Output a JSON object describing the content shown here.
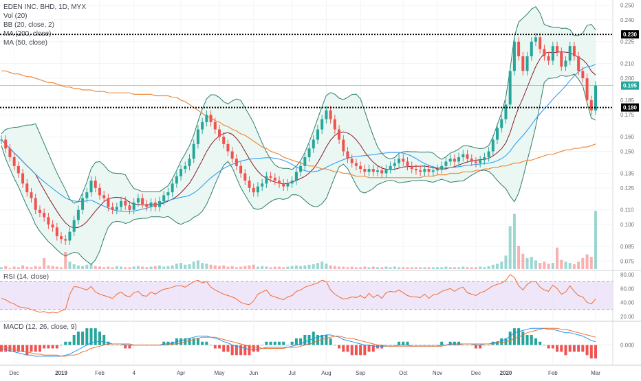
{
  "legend": {
    "title": "EDEN INC. BHD, 1D, MYX",
    "vol": "Vol (20)",
    "bb": "BB (20, close, 2)",
    "ma200": "MA (200, close)",
    "ma50": "MA (50, close)",
    "rsi": "RSI (14, close)",
    "macd": "MACD (12, 26, close, 9)"
  },
  "colors": {
    "up": "#26a69a",
    "down": "#ef5350",
    "bb": "#2e7d6c",
    "bb_fill": "#e9f6f2",
    "basis": "#8b1a2a",
    "ma50": "#2196f3",
    "ma200": "#ef8a3b",
    "rsi": "#ef6c2e",
    "rsi_band": "#e8dcf7",
    "macd": "#2196f3",
    "signal": "#ef6c2e",
    "tag_bg": "#000000",
    "tag_price": "#26a69a"
  },
  "chart_data": [
    {
      "type": "candlestick",
      "title": "EDEN INC. BHD, 1D, MYX",
      "x_ticks": [
        "Dec",
        "2019",
        "Feb",
        "4",
        "Apr",
        "May",
        "Jun",
        "Jul",
        "Aug",
        "Sep",
        "Oct",
        "Nov",
        "Dec",
        "2020",
        "Feb",
        "Mar"
      ],
      "y_ticks": [
        "0.250",
        "0.240",
        "0.225",
        "0.210",
        "0.200",
        "0.185",
        "0.175",
        "0.160",
        "0.150",
        "0.135",
        "0.125",
        "0.110",
        "0.100",
        "0.085",
        "0.075"
      ],
      "ylim": [
        0.0695,
        0.2535
      ],
      "horizontal_lines": [
        {
          "label": "0.230",
          "value": 0.23
        },
        {
          "label": "0.180",
          "value": 0.18
        }
      ],
      "last_price": {
        "label": "0.195",
        "value": 0.195
      },
      "series": [
        {
          "name": "price",
          "values": [
            0.158,
            0.152,
            0.146,
            0.14,
            0.135,
            0.128,
            0.122,
            0.118,
            0.11,
            0.108,
            0.105,
            0.1,
            0.098,
            0.092,
            0.09,
            0.089,
            0.095,
            0.103,
            0.11,
            0.118,
            0.122,
            0.13,
            0.125,
            0.12,
            0.118,
            0.112,
            0.11,
            0.112,
            0.116,
            0.113,
            0.11,
            0.115,
            0.118,
            0.114,
            0.112,
            0.115,
            0.112,
            0.116,
            0.12,
            0.122,
            0.128,
            0.133,
            0.138,
            0.14,
            0.145,
            0.155,
            0.165,
            0.17,
            0.175,
            0.17,
            0.165,
            0.16,
            0.155,
            0.15,
            0.145,
            0.14,
            0.135,
            0.13,
            0.125,
            0.122,
            0.126,
            0.128,
            0.133,
            0.132,
            0.13,
            0.128,
            0.126,
            0.128,
            0.13,
            0.136,
            0.14,
            0.146,
            0.152,
            0.158,
            0.165,
            0.172,
            0.178,
            0.172,
            0.165,
            0.158,
            0.15,
            0.145,
            0.142,
            0.14,
            0.138,
            0.136,
            0.138,
            0.136,
            0.137,
            0.135,
            0.138,
            0.14,
            0.142,
            0.145,
            0.143,
            0.14,
            0.138,
            0.137,
            0.136,
            0.138,
            0.136,
            0.137,
            0.138,
            0.14,
            0.143,
            0.145,
            0.143,
            0.146,
            0.148,
            0.145,
            0.143,
            0.142,
            0.144,
            0.146,
            0.15,
            0.158,
            0.166,
            0.172,
            0.182,
            0.205,
            0.225,
            0.215,
            0.205,
            0.215,
            0.225,
            0.228,
            0.22,
            0.215,
            0.212,
            0.222,
            0.218,
            0.208,
            0.212,
            0.222,
            0.215,
            0.205,
            0.2,
            0.185,
            0.178,
            0.195
          ]
        },
        {
          "name": "Vol",
          "values": [
            3,
            5,
            2,
            4,
            3,
            6,
            4,
            3,
            5,
            4,
            18,
            6,
            5,
            4,
            3,
            28,
            12,
            8,
            6,
            5,
            7,
            8,
            5,
            4,
            3,
            4,
            3,
            5,
            4,
            3,
            3,
            4,
            5,
            4,
            3,
            4,
            5,
            6,
            4,
            5,
            6,
            9,
            10,
            7,
            8,
            12,
            14,
            10,
            9,
            7,
            6,
            5,
            6,
            4,
            5,
            3,
            4,
            5,
            6,
            7,
            4,
            5,
            4,
            3,
            4,
            4,
            3,
            4,
            5,
            6,
            5,
            6,
            7,
            8,
            10,
            12,
            9,
            6,
            5,
            4,
            4,
            3,
            4,
            3,
            3,
            4,
            3,
            4,
            3,
            3,
            4,
            3,
            4,
            3,
            3,
            3,
            3,
            3,
            3,
            3,
            3,
            3,
            3,
            3,
            4,
            3,
            3,
            3,
            4,
            3,
            3,
            3,
            4,
            3,
            5,
            7,
            9,
            12,
            22,
            70,
            90,
            38,
            25,
            18,
            20,
            14,
            10,
            12,
            9,
            10,
            35,
            15,
            12,
            10,
            8,
            12,
            18,
            24,
            20,
            95
          ]
        },
        {
          "name": "RSI",
          "values": [
            46,
            44,
            40,
            38,
            34,
            33,
            32,
            30,
            28,
            26,
            27,
            25,
            26,
            25,
            28,
            30,
            52,
            63,
            62,
            60,
            58,
            63,
            55,
            52,
            50,
            48,
            46,
            52,
            55,
            50,
            48,
            54,
            56,
            50,
            49,
            55,
            52,
            56,
            59,
            60,
            62,
            64,
            64,
            62,
            66,
            70,
            72,
            68,
            70,
            62,
            58,
            55,
            52,
            50,
            48,
            45,
            40,
            38,
            37,
            42,
            52,
            55,
            58,
            50,
            48,
            46,
            44,
            48,
            50,
            56,
            58,
            62,
            64,
            66,
            68,
            72,
            70,
            58,
            52,
            48,
            45,
            46,
            48,
            47,
            50,
            46,
            53,
            47,
            51,
            46,
            54,
            56,
            55,
            58,
            54,
            50,
            48,
            48,
            47,
            52,
            46,
            51,
            52,
            56,
            58,
            60,
            56,
            60,
            62,
            54,
            52,
            50,
            54,
            56,
            60,
            64,
            66,
            68,
            72,
            80,
            76,
            64,
            58,
            66,
            70,
            70,
            62,
            58,
            56,
            65,
            60,
            52,
            55,
            64,
            56,
            50,
            48,
            40,
            38,
            45
          ]
        },
        {
          "name": "MACD",
          "values": [
            -0.003,
            -0.004,
            -0.005,
            -0.006,
            -0.007,
            -0.008,
            -0.009,
            -0.009,
            -0.01,
            -0.01,
            -0.01,
            -0.01,
            -0.01,
            -0.01,
            -0.01,
            -0.009,
            -0.008,
            -0.006,
            -0.004,
            -0.002,
            0.0,
            0.002,
            0.003,
            0.003,
            0.003,
            0.002,
            0.001,
            0.001,
            0.001,
            0.0,
            0.0,
            0.0,
            0.0,
            0.0,
            0.0,
            0.0,
            0.0,
            0.0,
            0.001,
            0.001,
            0.002,
            0.003,
            0.004,
            0.005,
            0.006,
            0.007,
            0.008,
            0.008,
            0.008,
            0.007,
            0.006,
            0.005,
            0.003,
            0.002,
            0.0,
            -0.001,
            -0.002,
            -0.003,
            -0.004,
            -0.004,
            -0.004,
            -0.003,
            -0.002,
            -0.002,
            -0.002,
            -0.002,
            -0.002,
            -0.002,
            -0.001,
            0.0,
            0.001,
            0.003,
            0.004,
            0.006,
            0.007,
            0.008,
            0.009,
            0.009,
            0.008,
            0.007,
            0.005,
            0.004,
            0.003,
            0.002,
            0.001,
            0.0,
            0.0,
            -0.001,
            -0.001,
            -0.001,
            -0.001,
            -0.001,
            -0.001,
            0.0,
            0.0,
            0.0,
            -0.001,
            -0.001,
            -0.001,
            -0.001,
            -0.001,
            -0.001,
            -0.001,
            0.0,
            0.0,
            0.001,
            0.001,
            0.001,
            0.001,
            0.001,
            0.001,
            0.0,
            0.0,
            0.001,
            0.001,
            0.002,
            0.003,
            0.004,
            0.005,
            0.008,
            0.011,
            0.012,
            0.013,
            0.014,
            0.015,
            0.015,
            0.015,
            0.015,
            0.014,
            0.014,
            0.013,
            0.012,
            0.011,
            0.011,
            0.01,
            0.009,
            0.008,
            0.006,
            0.004,
            0.003
          ]
        },
        {
          "name": "Signal",
          "values": [
            -0.001,
            -0.002,
            -0.003,
            -0.004,
            -0.005,
            -0.006,
            -0.006,
            -0.007,
            -0.008,
            -0.008,
            -0.009,
            -0.009,
            -0.009,
            -0.009,
            -0.01,
            -0.01,
            -0.009,
            -0.009,
            -0.008,
            -0.006,
            -0.005,
            -0.003,
            -0.002,
            -0.001,
            0.0,
            0.001,
            0.001,
            0.001,
            0.001,
            0.001,
            0.001,
            0.0,
            0.0,
            0.0,
            0.0,
            0.0,
            0.0,
            0.0,
            0.0,
            0.0,
            0.001,
            0.001,
            0.002,
            0.003,
            0.004,
            0.005,
            0.006,
            0.007,
            0.007,
            0.007,
            0.007,
            0.006,
            0.005,
            0.004,
            0.003,
            0.002,
            0.001,
            0.0,
            -0.001,
            -0.002,
            -0.002,
            -0.003,
            -0.003,
            -0.003,
            -0.003,
            -0.003,
            -0.003,
            -0.002,
            -0.002,
            -0.002,
            -0.001,
            0.0,
            0.001,
            0.002,
            0.004,
            0.005,
            0.006,
            0.007,
            0.008,
            0.008,
            0.007,
            0.006,
            0.006,
            0.005,
            0.004,
            0.003,
            0.002,
            0.001,
            0.0,
            0.0,
            -0.001,
            -0.001,
            -0.001,
            -0.001,
            -0.001,
            -0.001,
            -0.001,
            -0.001,
            -0.001,
            -0.001,
            -0.001,
            -0.001,
            -0.001,
            -0.001,
            0.0,
            0.0,
            0.0,
            0.0,
            0.001,
            0.001,
            0.001,
            0.001,
            0.001,
            0.001,
            0.001,
            0.001,
            0.002,
            0.002,
            0.003,
            0.004,
            0.006,
            0.007,
            0.009,
            0.011,
            0.012,
            0.013,
            0.014,
            0.015,
            0.015,
            0.015,
            0.015,
            0.014,
            0.014,
            0.013,
            0.012,
            0.011,
            0.01,
            0.009,
            0.008,
            0.007
          ]
        },
        {
          "name": "MA (200, close)",
          "values": [
            0.205,
            0.205,
            0.204,
            0.203,
            0.203,
            0.202,
            0.201,
            0.201,
            0.2,
            0.199,
            0.198,
            0.197,
            0.197,
            0.196,
            0.195,
            0.194,
            0.194,
            0.193,
            0.193,
            0.192,
            0.192,
            0.192,
            0.191,
            0.191,
            0.191,
            0.19,
            0.19,
            0.19,
            0.19,
            0.19,
            0.19,
            0.189,
            0.189,
            0.189,
            0.189,
            0.189,
            0.188,
            0.188,
            0.188,
            0.188,
            0.187,
            0.187,
            0.185,
            0.184,
            0.182,
            0.18,
            0.178,
            0.176,
            0.174,
            0.173,
            0.171,
            0.17,
            0.168,
            0.167,
            0.165,
            0.164,
            0.162,
            0.161,
            0.159,
            0.157,
            0.155,
            0.153,
            0.152,
            0.15,
            0.149,
            0.148,
            0.146,
            0.145,
            0.144,
            0.143,
            0.142,
            0.141,
            0.14,
            0.14,
            0.139,
            0.138,
            0.138,
            0.137,
            0.136,
            0.136,
            0.135,
            0.135,
            0.134,
            0.133,
            0.133,
            0.133,
            0.132,
            0.132,
            0.132,
            0.132,
            0.132,
            0.132,
            0.132,
            0.132,
            0.132,
            0.132,
            0.132,
            0.132,
            0.132,
            0.133,
            0.133,
            0.133,
            0.134,
            0.134,
            0.134,
            0.135,
            0.135,
            0.135,
            0.136,
            0.136,
            0.136,
            0.137,
            0.137,
            0.138,
            0.138,
            0.139,
            0.139,
            0.14,
            0.14,
            0.141,
            0.142,
            0.142,
            0.143,
            0.144,
            0.144,
            0.145,
            0.146,
            0.147,
            0.148,
            0.148,
            0.149,
            0.15,
            0.151,
            0.151,
            0.152,
            0.152,
            0.153,
            0.153,
            0.154,
            0.155
          ]
        }
      ]
    },
    {
      "type": "line",
      "title": "RSI (14, close)",
      "y_ticks": [
        "80.00",
        "60.00",
        "40.00",
        "20.00"
      ],
      "ylim": [
        15,
        84
      ],
      "band": [
        30,
        70
      ]
    },
    {
      "type": "line",
      "title": "MACD (12, 26, close, 9)",
      "y_ticks": [
        "0.000"
      ],
      "ylim": [
        -0.018,
        0.02
      ]
    }
  ]
}
